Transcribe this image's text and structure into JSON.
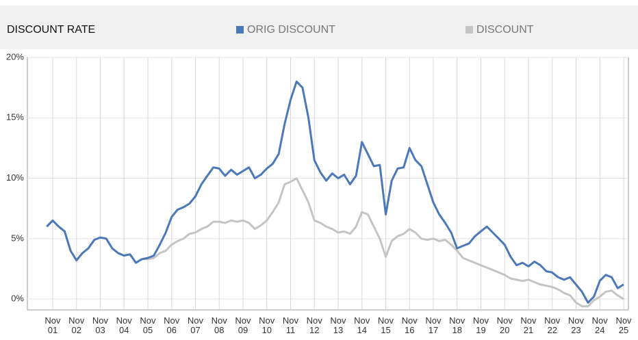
{
  "chart_data": {
    "type": "line",
    "title": "DISCOUNT RATE",
    "categories": [
      null,
      "Nov 01",
      null,
      null,
      null,
      "Nov 02",
      null,
      null,
      null,
      "Nov 03",
      null,
      null,
      null,
      "Nov 04",
      null,
      null,
      null,
      "Nov 05",
      null,
      null,
      null,
      "Nov 06",
      null,
      null,
      null,
      "Nov 07",
      null,
      null,
      null,
      "Nov 08",
      null,
      null,
      null,
      "Nov 09",
      null,
      null,
      null,
      "Nov 10",
      null,
      null,
      null,
      "Nov 11",
      null,
      null,
      null,
      "Nov 12",
      null,
      null,
      null,
      "Nov 13",
      null,
      null,
      null,
      "Nov 14",
      null,
      null,
      null,
      "Nov 15",
      null,
      null,
      null,
      "Nov 16",
      null,
      null,
      null,
      "Nov 17",
      null,
      null,
      null,
      "Nov 18",
      null,
      null,
      null,
      "Nov 19",
      null,
      null,
      null,
      "Nov 20",
      null,
      null,
      null,
      "Nov 21",
      null,
      null,
      null,
      "Nov 22",
      null,
      null,
      null,
      "Nov 23",
      null,
      null,
      null,
      "Nov 24",
      null,
      null,
      null,
      "Nov 25"
    ],
    "series": [
      {
        "name": "ORIG DISCOUNT",
        "color": "#4a78b8",
        "values": [
          6.0,
          6.5,
          6.0,
          5.6,
          4.0,
          3.2,
          3.8,
          4.2,
          4.9,
          5.1,
          5.0,
          4.2,
          3.8,
          3.6,
          3.7,
          3.0,
          3.3,
          3.4,
          3.6,
          4.5,
          5.5,
          6.8,
          7.4,
          7.6,
          7.9,
          8.5,
          9.5,
          10.2,
          10.9,
          10.8,
          10.2,
          10.7,
          10.3,
          10.6,
          10.9,
          10.0,
          10.3,
          10.8,
          11.2,
          12.0,
          14.5,
          16.5,
          18.0,
          17.5,
          15.0,
          11.5,
          10.5,
          9.8,
          10.4,
          10.0,
          10.3,
          9.5,
          10.2,
          13.0,
          12.0,
          11.0,
          11.1,
          7.0,
          9.8,
          10.8,
          10.9,
          12.5,
          11.5,
          11.0,
          9.5,
          8.0,
          7.0,
          6.3,
          5.5,
          4.2,
          4.4,
          4.6,
          5.2,
          5.6,
          6.0,
          5.5,
          5.0,
          4.5,
          3.5,
          2.8,
          3.0,
          2.7,
          3.1,
          2.8,
          2.3,
          2.2,
          1.8,
          1.6,
          1.8,
          1.2,
          0.6,
          -0.3,
          0.2,
          1.5,
          2.0,
          1.8,
          0.9,
          1.2
        ]
      },
      {
        "name": "DISCOUNT",
        "color": "#c4c4c4",
        "values": [
          6.0,
          6.5,
          6.0,
          5.6,
          4.0,
          3.2,
          3.8,
          4.2,
          4.9,
          5.1,
          5.0,
          4.2,
          3.8,
          3.6,
          3.7,
          3.0,
          3.3,
          3.3,
          3.4,
          3.8,
          4.0,
          4.5,
          4.8,
          5.0,
          5.4,
          5.5,
          5.8,
          6.0,
          6.4,
          6.4,
          6.3,
          6.5,
          6.4,
          6.5,
          6.3,
          5.8,
          6.1,
          6.5,
          7.2,
          8.0,
          9.5,
          9.7,
          10.0,
          9.0,
          8.0,
          6.5,
          6.3,
          6.0,
          5.8,
          5.5,
          5.6,
          5.4,
          6.0,
          7.2,
          7.0,
          6.0,
          5.0,
          3.5,
          4.8,
          5.2,
          5.4,
          5.8,
          5.5,
          5.0,
          4.9,
          5.0,
          4.8,
          4.9,
          4.5,
          4.0,
          3.4,
          3.2,
          3.0,
          2.8,
          2.6,
          2.4,
          2.2,
          2.0,
          1.7,
          1.6,
          1.5,
          1.6,
          1.4,
          1.2,
          1.1,
          1.0,
          0.8,
          0.5,
          0.3,
          -0.3,
          -0.6,
          -0.6,
          -0.1,
          0.2,
          0.6,
          0.7,
          0.3,
          0.0
        ]
      }
    ],
    "ylim": [
      -0.9,
      20
    ],
    "yticks": [
      {
        "value": 0,
        "label": "0%"
      },
      {
        "value": 5,
        "label": "5%"
      },
      {
        "value": 10,
        "label": "10%"
      },
      {
        "value": 15,
        "label": "15%"
      },
      {
        "value": 20,
        "label": "20%"
      }
    ],
    "grid": true
  }
}
